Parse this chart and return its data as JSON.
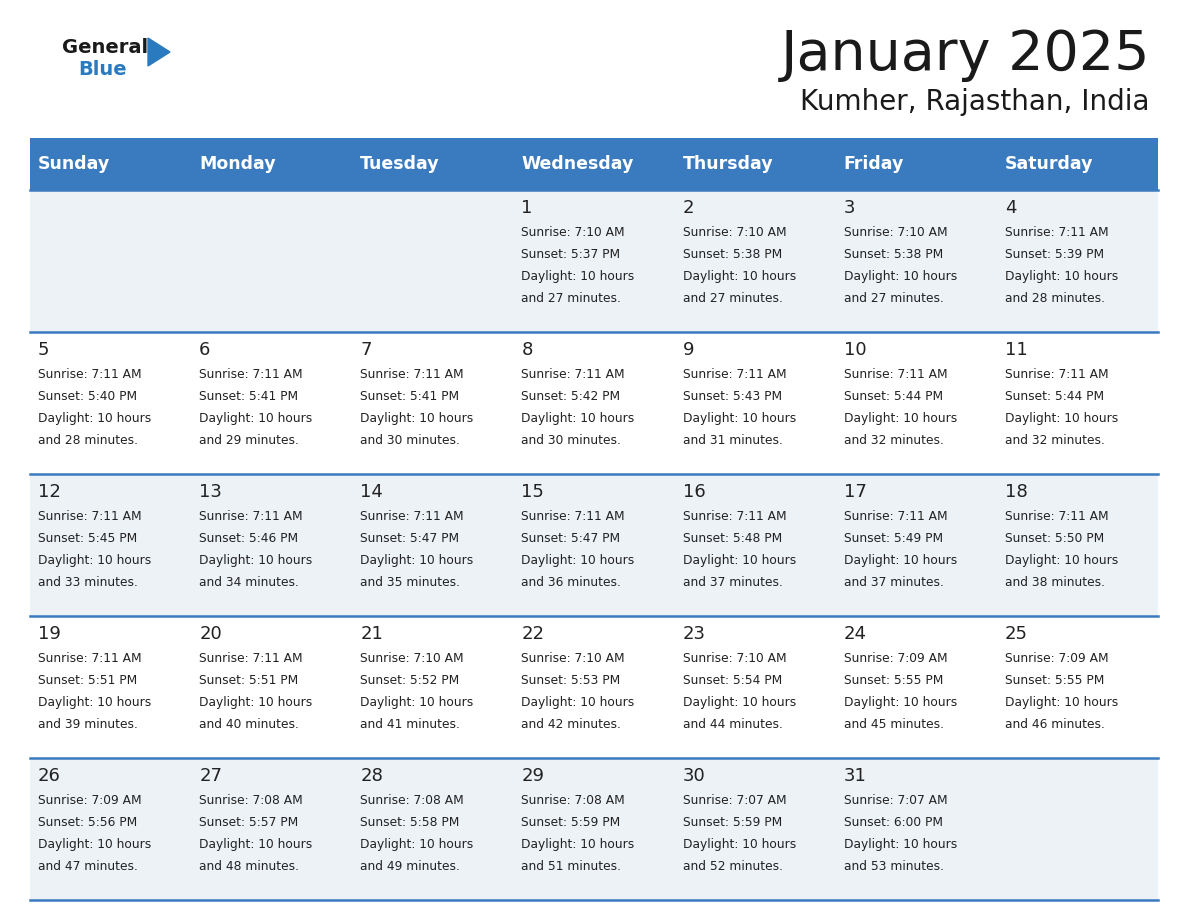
{
  "title": "January 2025",
  "subtitle": "Kumher, Rajasthan, India",
  "days_of_week": [
    "Sunday",
    "Monday",
    "Tuesday",
    "Wednesday",
    "Thursday",
    "Friday",
    "Saturday"
  ],
  "header_bg": "#3a7abf",
  "header_text_color": "#ffffff",
  "row_bg_odd": "#edf2f7",
  "row_bg_even": "#ffffff",
  "cell_text_color": "#222222",
  "divider_color": "#3a7abf",
  "calendar_data": [
    [
      {
        "day": "",
        "sunrise": "",
        "sunset": "",
        "daylight": ""
      },
      {
        "day": "",
        "sunrise": "",
        "sunset": "",
        "daylight": ""
      },
      {
        "day": "",
        "sunrise": "",
        "sunset": "",
        "daylight": ""
      },
      {
        "day": "1",
        "sunrise": "7:10 AM",
        "sunset": "5:37 PM",
        "daylight": "10 hours and 27 minutes."
      },
      {
        "day": "2",
        "sunrise": "7:10 AM",
        "sunset": "5:38 PM",
        "daylight": "10 hours and 27 minutes."
      },
      {
        "day": "3",
        "sunrise": "7:10 AM",
        "sunset": "5:38 PM",
        "daylight": "10 hours and 27 minutes."
      },
      {
        "day": "4",
        "sunrise": "7:11 AM",
        "sunset": "5:39 PM",
        "daylight": "10 hours and 28 minutes."
      }
    ],
    [
      {
        "day": "5",
        "sunrise": "7:11 AM",
        "sunset": "5:40 PM",
        "daylight": "10 hours and 28 minutes."
      },
      {
        "day": "6",
        "sunrise": "7:11 AM",
        "sunset": "5:41 PM",
        "daylight": "10 hours and 29 minutes."
      },
      {
        "day": "7",
        "sunrise": "7:11 AM",
        "sunset": "5:41 PM",
        "daylight": "10 hours and 30 minutes."
      },
      {
        "day": "8",
        "sunrise": "7:11 AM",
        "sunset": "5:42 PM",
        "daylight": "10 hours and 30 minutes."
      },
      {
        "day": "9",
        "sunrise": "7:11 AM",
        "sunset": "5:43 PM",
        "daylight": "10 hours and 31 minutes."
      },
      {
        "day": "10",
        "sunrise": "7:11 AM",
        "sunset": "5:44 PM",
        "daylight": "10 hours and 32 minutes."
      },
      {
        "day": "11",
        "sunrise": "7:11 AM",
        "sunset": "5:44 PM",
        "daylight": "10 hours and 32 minutes."
      }
    ],
    [
      {
        "day": "12",
        "sunrise": "7:11 AM",
        "sunset": "5:45 PM",
        "daylight": "10 hours and 33 minutes."
      },
      {
        "day": "13",
        "sunrise": "7:11 AM",
        "sunset": "5:46 PM",
        "daylight": "10 hours and 34 minutes."
      },
      {
        "day": "14",
        "sunrise": "7:11 AM",
        "sunset": "5:47 PM",
        "daylight": "10 hours and 35 minutes."
      },
      {
        "day": "15",
        "sunrise": "7:11 AM",
        "sunset": "5:47 PM",
        "daylight": "10 hours and 36 minutes."
      },
      {
        "day": "16",
        "sunrise": "7:11 AM",
        "sunset": "5:48 PM",
        "daylight": "10 hours and 37 minutes."
      },
      {
        "day": "17",
        "sunrise": "7:11 AM",
        "sunset": "5:49 PM",
        "daylight": "10 hours and 37 minutes."
      },
      {
        "day": "18",
        "sunrise": "7:11 AM",
        "sunset": "5:50 PM",
        "daylight": "10 hours and 38 minutes."
      }
    ],
    [
      {
        "day": "19",
        "sunrise": "7:11 AM",
        "sunset": "5:51 PM",
        "daylight": "10 hours and 39 minutes."
      },
      {
        "day": "20",
        "sunrise": "7:11 AM",
        "sunset": "5:51 PM",
        "daylight": "10 hours and 40 minutes."
      },
      {
        "day": "21",
        "sunrise": "7:10 AM",
        "sunset": "5:52 PM",
        "daylight": "10 hours and 41 minutes."
      },
      {
        "day": "22",
        "sunrise": "7:10 AM",
        "sunset": "5:53 PM",
        "daylight": "10 hours and 42 minutes."
      },
      {
        "day": "23",
        "sunrise": "7:10 AM",
        "sunset": "5:54 PM",
        "daylight": "10 hours and 44 minutes."
      },
      {
        "day": "24",
        "sunrise": "7:09 AM",
        "sunset": "5:55 PM",
        "daylight": "10 hours and 45 minutes."
      },
      {
        "day": "25",
        "sunrise": "7:09 AM",
        "sunset": "5:55 PM",
        "daylight": "10 hours and 46 minutes."
      }
    ],
    [
      {
        "day": "26",
        "sunrise": "7:09 AM",
        "sunset": "5:56 PM",
        "daylight": "10 hours and 47 minutes."
      },
      {
        "day": "27",
        "sunrise": "7:08 AM",
        "sunset": "5:57 PM",
        "daylight": "10 hours and 48 minutes."
      },
      {
        "day": "28",
        "sunrise": "7:08 AM",
        "sunset": "5:58 PM",
        "daylight": "10 hours and 49 minutes."
      },
      {
        "day": "29",
        "sunrise": "7:08 AM",
        "sunset": "5:59 PM",
        "daylight": "10 hours and 51 minutes."
      },
      {
        "day": "30",
        "sunrise": "7:07 AM",
        "sunset": "5:59 PM",
        "daylight": "10 hours and 52 minutes."
      },
      {
        "day": "31",
        "sunrise": "7:07 AM",
        "sunset": "6:00 PM",
        "daylight": "10 hours and 53 minutes."
      },
      {
        "day": "",
        "sunrise": "",
        "sunset": "",
        "daylight": ""
      }
    ]
  ]
}
